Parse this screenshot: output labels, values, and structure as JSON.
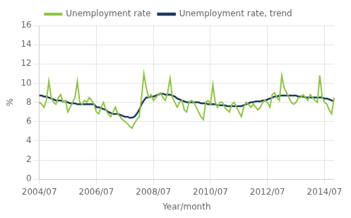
{
  "chart_data": {
    "type": "line",
    "xlabel": "Year/month",
    "ylabel": "%",
    "categories": [
      "2004/07",
      null,
      null,
      null,
      null,
      null,
      null,
      null,
      null,
      null,
      null,
      null,
      null,
      null,
      null,
      null,
      null,
      null,
      null,
      null,
      null,
      null,
      null,
      null,
      "2006/07",
      null,
      null,
      null,
      null,
      null,
      null,
      null,
      null,
      null,
      null,
      null,
      null,
      null,
      null,
      null,
      null,
      null,
      null,
      null,
      null,
      null,
      null,
      null,
      "2008/07",
      null,
      null,
      null,
      null,
      null,
      null,
      null,
      null,
      null,
      null,
      null,
      null,
      null,
      null,
      null,
      null,
      null,
      null,
      null,
      null,
      null,
      null,
      null,
      "2010/07",
      null,
      null,
      null,
      null,
      null,
      null,
      null,
      null,
      null,
      null,
      null,
      null,
      null,
      null,
      null,
      null,
      null,
      null,
      null,
      null,
      null,
      null,
      null,
      "2012/07",
      null,
      null,
      null,
      null,
      null,
      null,
      null,
      null,
      null,
      null,
      null,
      null,
      null,
      null,
      null,
      null,
      null,
      null,
      null,
      null,
      null,
      null,
      null,
      "2014/07",
      null,
      null,
      null,
      null
    ],
    "series": [
      {
        "name": "Unemployment rate",
        "color": "#8dc63f",
        "values": [
          8.0,
          7.8,
          7.5,
          8.2,
          10.2,
          8.5,
          8.0,
          7.8,
          8.5,
          8.8,
          8.0,
          8.2,
          7.0,
          7.5,
          8.0,
          8.5,
          10.2,
          8.0,
          7.8,
          8.2,
          8.0,
          8.5,
          8.2,
          7.8,
          7.0,
          6.8,
          7.5,
          8.0,
          7.2,
          6.8,
          6.5,
          7.0,
          7.5,
          6.8,
          6.5,
          6.2,
          6.0,
          5.8,
          5.5,
          5.3,
          5.8,
          6.2,
          6.5,
          8.5,
          11.0,
          9.5,
          8.5,
          8.8,
          8.2,
          8.5,
          8.8,
          9.0,
          8.5,
          8.2,
          9.0,
          10.5,
          8.5,
          8.0,
          7.5,
          8.0,
          8.2,
          7.2,
          7.0,
          8.0,
          8.2,
          8.0,
          7.5,
          7.0,
          6.5,
          6.2,
          8.0,
          8.2,
          7.8,
          9.8,
          8.0,
          7.5,
          8.0,
          8.0,
          7.5,
          7.2,
          7.0,
          7.8,
          8.0,
          7.5,
          7.0,
          6.5,
          7.5,
          8.0,
          7.8,
          7.5,
          7.8,
          7.5,
          7.2,
          7.5,
          8.0,
          8.2,
          8.0,
          7.5,
          8.8,
          9.0,
          8.5,
          8.2,
          10.8,
          9.5,
          9.0,
          8.5,
          8.0,
          7.8,
          8.0,
          8.5,
          8.5,
          8.8,
          8.5,
          8.2,
          8.8,
          8.5,
          8.2,
          8.0,
          10.8,
          8.5,
          8.0,
          7.8,
          7.2,
          6.8,
          8.5
        ]
      },
      {
        "name": "Unemployment rate, trend",
        "color": "#1f3864",
        "values": [
          8.7,
          8.7,
          8.6,
          8.6,
          8.5,
          8.4,
          8.3,
          8.2,
          8.2,
          8.2,
          8.1,
          8.1,
          8.0,
          7.9,
          7.9,
          7.9,
          7.8,
          7.8,
          7.8,
          7.8,
          7.8,
          7.8,
          7.8,
          7.8,
          7.5,
          7.5,
          7.4,
          7.3,
          7.2,
          7.0,
          6.9,
          6.8,
          6.8,
          6.8,
          6.7,
          6.6,
          6.5,
          6.5,
          6.4,
          6.4,
          6.5,
          6.8,
          7.2,
          7.8,
          8.2,
          8.5,
          8.5,
          8.6,
          8.6,
          8.7,
          8.8,
          8.9,
          8.9,
          8.8,
          8.8,
          8.8,
          8.7,
          8.6,
          8.4,
          8.3,
          8.2,
          8.1,
          8.0,
          8.0,
          8.0,
          8.0,
          8.0,
          8.0,
          7.9,
          7.9,
          7.9,
          7.8,
          7.8,
          7.8,
          7.8,
          7.7,
          7.7,
          7.7,
          7.7,
          7.6,
          7.6,
          7.6,
          7.6,
          7.6,
          7.6,
          7.6,
          7.7,
          7.8,
          7.9,
          8.0,
          8.0,
          8.1,
          8.1,
          8.1,
          8.2,
          8.2,
          8.3,
          8.4,
          8.5,
          8.6,
          8.6,
          8.7,
          8.7,
          8.7,
          8.7,
          8.7,
          8.7,
          8.7,
          8.7,
          8.6,
          8.6,
          8.6,
          8.5,
          8.5,
          8.5,
          8.5,
          8.5,
          8.5,
          8.5,
          8.5,
          8.4,
          8.4,
          8.3,
          8.2,
          8.1
        ]
      }
    ],
    "ylim": [
      0,
      16
    ],
    "yticks": [
      0,
      2,
      4,
      6,
      8,
      10,
      12,
      14,
      16
    ],
    "grid": true,
    "legend": "top"
  }
}
